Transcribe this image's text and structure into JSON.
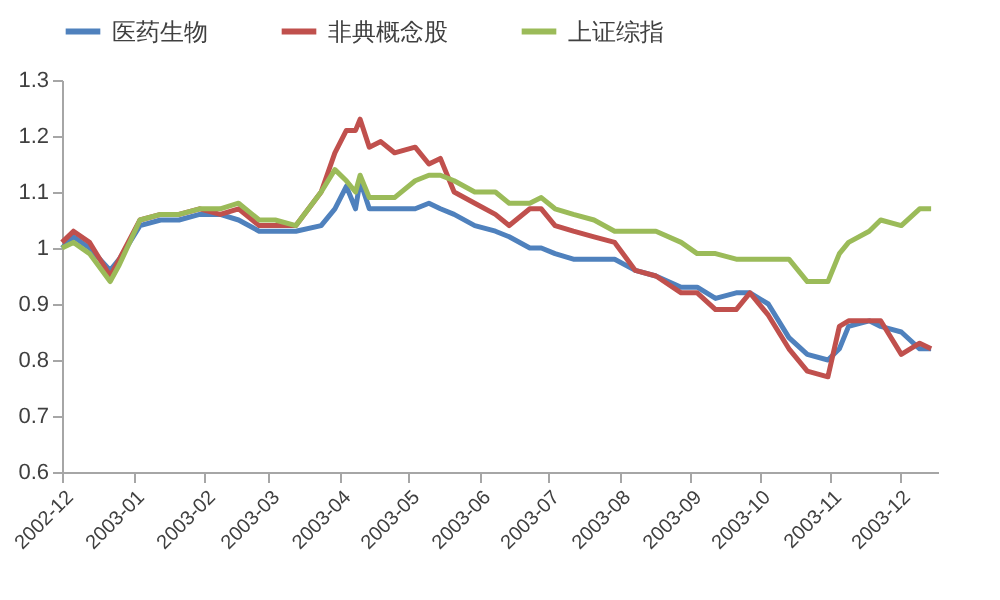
{
  "chart_data": {
    "type": "line",
    "legend": "top",
    "grid": false,
    "x": [
      "2002-12-01",
      "2002-12-06",
      "2002-12-13",
      "2002-12-22",
      "2002-12-26",
      "2003-01-04",
      "2003-01-13",
      "2003-01-21",
      "2003-01-30",
      "2003-02-08",
      "2003-02-16",
      "2003-02-25",
      "2003-03-04",
      "2003-03-13",
      "2003-03-24",
      "2003-03-30",
      "2003-04-04",
      "2003-04-08",
      "2003-04-10",
      "2003-04-14",
      "2003-04-19",
      "2003-04-25",
      "2003-05-04",
      "2003-05-10",
      "2003-05-15",
      "2003-05-21",
      "2003-05-30",
      "2003-06-08",
      "2003-06-14",
      "2003-06-23",
      "2003-06-28",
      "2003-07-04",
      "2003-07-12",
      "2003-07-21",
      "2003-07-30",
      "2003-08-08",
      "2003-08-17",
      "2003-08-28",
      "2003-09-04",
      "2003-09-12",
      "2003-09-21",
      "2003-09-27",
      "2003-10-05",
      "2003-10-14",
      "2003-10-22",
      "2003-10-31",
      "2003-11-05",
      "2003-11-09",
      "2003-11-18",
      "2003-11-23",
      "2003-12-02",
      "2003-12-10",
      "2003-12-15"
    ],
    "series": [
      {
        "name": "医药生物",
        "color": "#4f81bd",
        "values": [
          1.0,
          1.02,
          1.0,
          0.96,
          0.98,
          1.04,
          1.05,
          1.05,
          1.06,
          1.06,
          1.05,
          1.03,
          1.03,
          1.03,
          1.04,
          1.07,
          1.11,
          1.07,
          1.12,
          1.07,
          1.07,
          1.07,
          1.07,
          1.08,
          1.07,
          1.06,
          1.04,
          1.03,
          1.02,
          1.0,
          1.0,
          0.99,
          0.98,
          0.98,
          0.98,
          0.96,
          0.95,
          0.93,
          0.93,
          0.91,
          0.92,
          0.92,
          0.9,
          0.84,
          0.81,
          0.8,
          0.82,
          0.86,
          0.87,
          0.86,
          0.85,
          0.82,
          0.82
        ]
      },
      {
        "name": "非典概念股",
        "color": "#c0504d",
        "values": [
          1.01,
          1.03,
          1.01,
          0.95,
          0.98,
          1.05,
          1.06,
          1.06,
          1.07,
          1.06,
          1.07,
          1.04,
          1.04,
          1.04,
          1.1,
          1.17,
          1.21,
          1.21,
          1.23,
          1.18,
          1.19,
          1.17,
          1.18,
          1.15,
          1.16,
          1.1,
          1.08,
          1.06,
          1.04,
          1.07,
          1.07,
          1.04,
          1.03,
          1.02,
          1.01,
          0.96,
          0.95,
          0.92,
          0.92,
          0.89,
          0.89,
          0.92,
          0.88,
          0.82,
          0.78,
          0.77,
          0.86,
          0.87,
          0.87,
          0.87,
          0.81,
          0.83,
          0.82
        ]
      },
      {
        "name": "上证综指",
        "color": "#9bbb59",
        "values": [
          1.0,
          1.01,
          0.99,
          0.94,
          0.97,
          1.05,
          1.06,
          1.06,
          1.07,
          1.07,
          1.08,
          1.05,
          1.05,
          1.04,
          1.1,
          1.14,
          1.12,
          1.1,
          1.13,
          1.09,
          1.09,
          1.09,
          1.12,
          1.13,
          1.13,
          1.12,
          1.1,
          1.1,
          1.08,
          1.08,
          1.09,
          1.07,
          1.06,
          1.05,
          1.03,
          1.03,
          1.03,
          1.01,
          0.99,
          0.99,
          0.98,
          0.98,
          0.98,
          0.98,
          0.94,
          0.94,
          0.99,
          1.01,
          1.03,
          1.05,
          1.04,
          1.07,
          1.07
        ]
      }
    ],
    "xlim": [
      "2002-12-01",
      "2003-12-18"
    ],
    "xticks": [
      "2002-12",
      "2003-01",
      "2003-02",
      "2003-03",
      "2003-04",
      "2003-05",
      "2003-06",
      "2003-07",
      "2003-08",
      "2003-09",
      "2003-10",
      "2003-11",
      "2003-12"
    ],
    "ylim": [
      0.6,
      1.3
    ],
    "yticks": [
      0.6,
      0.7,
      0.8,
      0.9,
      1,
      1.1,
      1.2,
      1.3
    ]
  }
}
